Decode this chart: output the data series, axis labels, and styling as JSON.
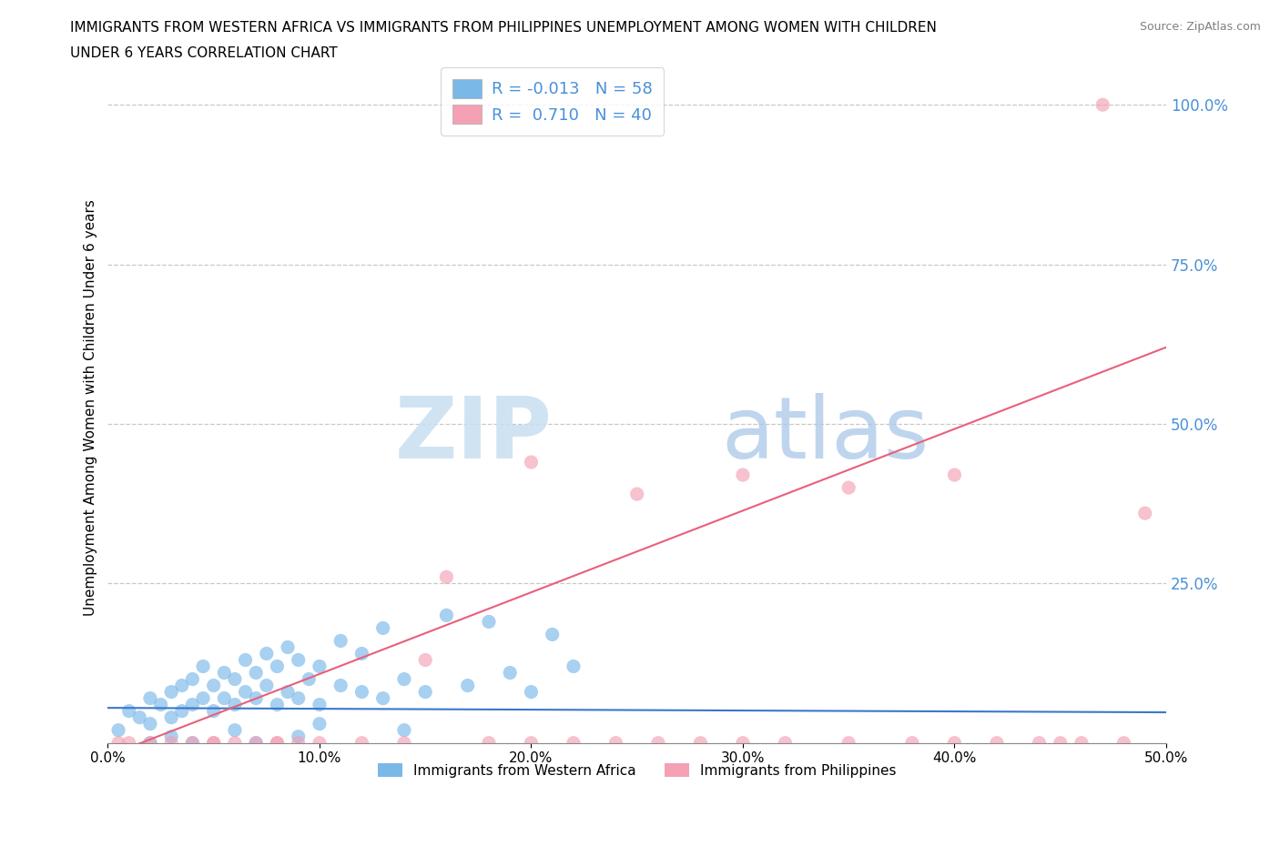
{
  "title_line1": "IMMIGRANTS FROM WESTERN AFRICA VS IMMIGRANTS FROM PHILIPPINES UNEMPLOYMENT AMONG WOMEN WITH CHILDREN",
  "title_line2": "UNDER 6 YEARS CORRELATION CHART",
  "source": "Source: ZipAtlas.com",
  "ylabel": "Unemployment Among Women with Children Under 6 years",
  "watermark_zip": "ZIP",
  "watermark_atlas": "atlas",
  "legend1_label": "Immigrants from Western Africa",
  "legend2_label": "Immigrants from Philippines",
  "R1": -0.013,
  "N1": 58,
  "R2": 0.71,
  "N2": 40,
  "color1": "#7ab8e8",
  "color2": "#f4a0b5",
  "line1_color": "#3a78c9",
  "line2_color": "#e8607a",
  "xlim": [
    0.0,
    0.5
  ],
  "ylim": [
    0.0,
    1.05
  ],
  "ytick_vals": [
    0.0,
    0.25,
    0.5,
    0.75,
    1.0
  ],
  "ytick_labels": [
    "",
    "25.0%",
    "50.0%",
    "75.0%",
    "100.0%"
  ],
  "xtick_vals": [
    0.0,
    0.1,
    0.2,
    0.3,
    0.4,
    0.5
  ],
  "xtick_labels": [
    "0.0%",
    "10.0%",
    "20.0%",
    "30.0%",
    "40.0%",
    "50.0%"
  ],
  "scatter1_x": [
    0.005,
    0.01,
    0.015,
    0.02,
    0.02,
    0.025,
    0.03,
    0.03,
    0.035,
    0.035,
    0.04,
    0.04,
    0.045,
    0.045,
    0.05,
    0.05,
    0.055,
    0.055,
    0.06,
    0.06,
    0.065,
    0.065,
    0.07,
    0.07,
    0.075,
    0.075,
    0.08,
    0.08,
    0.085,
    0.085,
    0.09,
    0.09,
    0.095,
    0.1,
    0.1,
    0.11,
    0.11,
    0.12,
    0.12,
    0.13,
    0.13,
    0.14,
    0.15,
    0.16,
    0.17,
    0.18,
    0.19,
    0.2,
    0.21,
    0.22,
    0.02,
    0.03,
    0.04,
    0.06,
    0.07,
    0.09,
    0.1,
    0.14
  ],
  "scatter1_y": [
    0.02,
    0.05,
    0.04,
    0.07,
    0.03,
    0.06,
    0.08,
    0.04,
    0.09,
    0.05,
    0.06,
    0.1,
    0.07,
    0.12,
    0.05,
    0.09,
    0.07,
    0.11,
    0.06,
    0.1,
    0.08,
    0.13,
    0.07,
    0.11,
    0.09,
    0.14,
    0.06,
    0.12,
    0.08,
    0.15,
    0.07,
    0.13,
    0.1,
    0.06,
    0.12,
    0.09,
    0.16,
    0.08,
    0.14,
    0.07,
    0.18,
    0.1,
    0.08,
    0.2,
    0.09,
    0.19,
    0.11,
    0.08,
    0.17,
    0.12,
    0.0,
    0.01,
    0.0,
    0.02,
    0.0,
    0.01,
    0.03,
    0.02
  ],
  "scatter2_x": [
    0.005,
    0.01,
    0.02,
    0.03,
    0.04,
    0.05,
    0.06,
    0.07,
    0.08,
    0.09,
    0.1,
    0.12,
    0.14,
    0.16,
    0.18,
    0.2,
    0.22,
    0.24,
    0.26,
    0.28,
    0.3,
    0.32,
    0.35,
    0.38,
    0.4,
    0.42,
    0.44,
    0.46,
    0.48,
    0.05,
    0.08,
    0.15,
    0.2,
    0.25,
    0.3,
    0.35,
    0.4,
    0.45,
    0.47,
    0.49
  ],
  "scatter2_y": [
    0.0,
    0.0,
    0.0,
    0.0,
    0.0,
    0.0,
    0.0,
    0.0,
    0.0,
    0.0,
    0.0,
    0.0,
    0.0,
    0.26,
    0.0,
    0.0,
    0.0,
    0.0,
    0.0,
    0.0,
    0.0,
    0.0,
    0.0,
    0.0,
    0.0,
    0.0,
    0.0,
    0.0,
    0.0,
    0.0,
    0.0,
    0.13,
    0.44,
    0.39,
    0.42,
    0.4,
    0.42,
    0.0,
    1.0,
    0.36
  ],
  "line1_x": [
    0.0,
    0.5
  ],
  "line1_y": [
    0.055,
    0.048
  ],
  "line2_x": [
    0.0,
    0.5
  ],
  "line2_y": [
    -0.02,
    0.62
  ],
  "background_color": "#ffffff",
  "grid_color": "#c8c8c8",
  "tick_color": "#4a90d9"
}
